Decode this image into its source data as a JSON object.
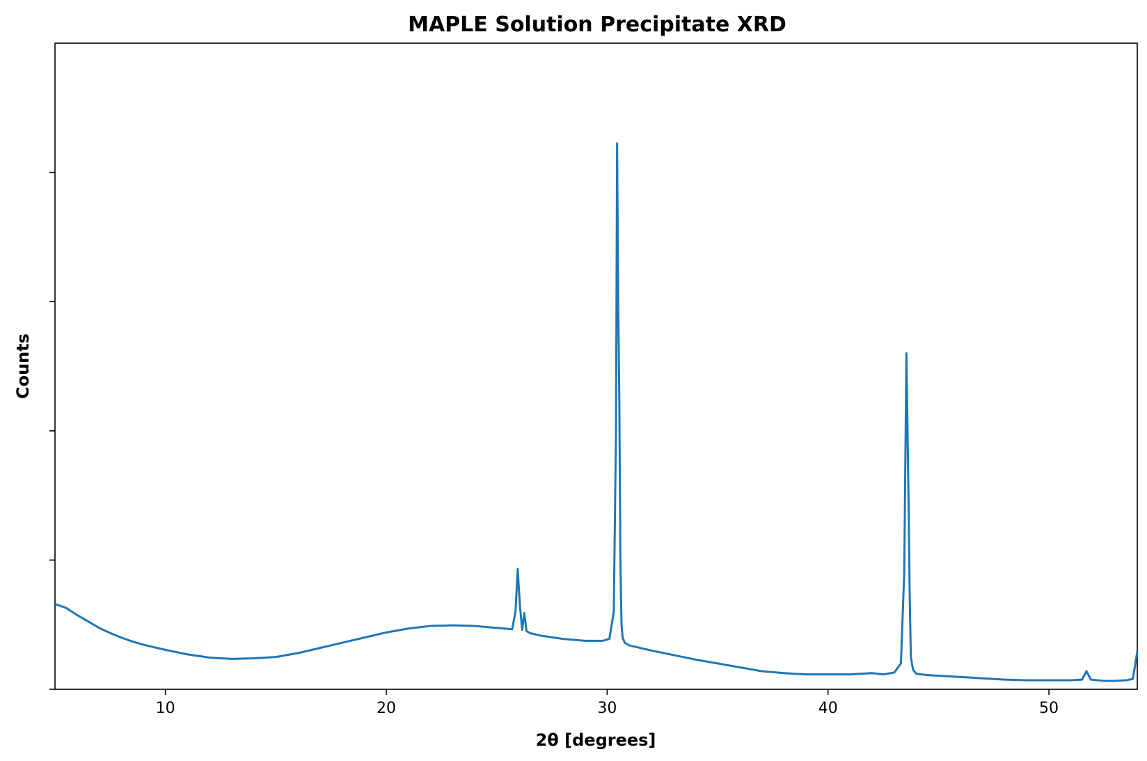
{
  "chart_data": {
    "type": "line",
    "title": "MAPLE Solution Precipitate XRD",
    "xlabel": "2θ [degrees]",
    "ylabel": "Counts",
    "xlim": [
      5,
      54
    ],
    "ylim": [
      0,
      100
    ],
    "x_ticks": [
      10,
      20,
      30,
      40,
      50
    ],
    "x_tick_labels": [
      "10",
      "20",
      "30",
      "40",
      "50"
    ],
    "y_ticks": [
      0,
      20,
      40,
      60,
      80
    ],
    "y_tick_labels": [
      "",
      "",
      "",
      "",
      ""
    ],
    "grid": false,
    "legend": "none",
    "colors": {
      "series": "#1f77b4",
      "axes": "#000000",
      "background": "#ffffff"
    },
    "series": [
      {
        "x": [
          5.0,
          5.5,
          6.0,
          6.5,
          7.0,
          7.5,
          8.0,
          8.5,
          9.0,
          9.5,
          10.0,
          11.0,
          12.0,
          13.0,
          14.0,
          15.0,
          16.0,
          17.0,
          18.0,
          19.0,
          20.0,
          21.0,
          22.0,
          23.0,
          24.0,
          25.0,
          25.7,
          25.85,
          25.95,
          26.05,
          26.15,
          26.25,
          26.35,
          26.5,
          27.0,
          28.0,
          29.0,
          29.8,
          30.1,
          30.3,
          30.4,
          30.45,
          30.5,
          30.55,
          30.6,
          30.65,
          30.7,
          30.8,
          31.0,
          32.0,
          33.0,
          34.0,
          35.0,
          36.0,
          37.0,
          38.0,
          39.0,
          40.0,
          41.0,
          42.0,
          42.5,
          43.0,
          43.3,
          43.45,
          43.55,
          43.6,
          43.65,
          43.7,
          43.75,
          43.85,
          44.0,
          44.5,
          45.0,
          46.0,
          47.0,
          48.0,
          49.0,
          50.0,
          51.0,
          51.5,
          51.7,
          51.9,
          52.5,
          53.0,
          53.5,
          53.8,
          54.0
        ],
        "y": [
          13.2,
          12.6,
          11.5,
          10.5,
          9.5,
          8.7,
          8.0,
          7.4,
          6.9,
          6.5,
          6.1,
          5.4,
          4.9,
          4.7,
          4.8,
          5.0,
          5.6,
          6.4,
          7.2,
          8.0,
          8.8,
          9.4,
          9.8,
          9.9,
          9.8,
          9.5,
          9.3,
          12.0,
          18.6,
          13.0,
          9.2,
          11.8,
          9.0,
          8.7,
          8.3,
          7.8,
          7.5,
          7.5,
          7.8,
          12.0,
          40.0,
          84.5,
          60.0,
          45.0,
          20.0,
          10.0,
          8.0,
          7.2,
          6.8,
          6.0,
          5.3,
          4.6,
          4.0,
          3.4,
          2.8,
          2.5,
          2.3,
          2.3,
          2.3,
          2.5,
          2.3,
          2.6,
          4.0,
          18.0,
          52.0,
          40.0,
          28.0,
          14.0,
          5.0,
          3.0,
          2.4,
          2.2,
          2.1,
          1.9,
          1.7,
          1.5,
          1.4,
          1.4,
          1.4,
          1.5,
          2.8,
          1.5,
          1.3,
          1.3,
          1.4,
          1.6,
          5.8
        ]
      }
    ]
  }
}
